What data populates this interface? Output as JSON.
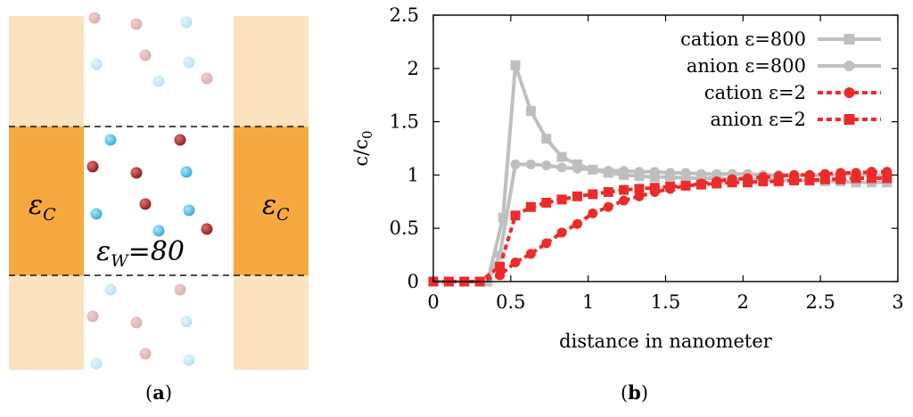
{
  "panel_a": {
    "caption_open": "(",
    "caption_letter": "a",
    "caption_close": ")",
    "left_label_main": "ε",
    "left_label_sub": "C",
    "right_label_main": "ε",
    "right_label_sub": "C",
    "water_label_main": "ε",
    "water_label_sub": "W",
    "water_label_value": "=80",
    "colors": {
      "electrode_light": "#fbe3c0",
      "electrode_dark": "#f7a93f",
      "cation": "#b03030",
      "anion": "#5cc8ec"
    }
  },
  "panel_b": {
    "caption_open": "(",
    "caption_letter": "b",
    "caption_close": ")"
  },
  "chart_data": {
    "type": "line",
    "title": "",
    "xlabel": "distance in nanometer",
    "ylabel_main": "c/c",
    "ylabel_sub": "0",
    "xlim": [
      0,
      3
    ],
    "ylim": [
      0,
      2.5
    ],
    "xticks": [
      "0",
      "0.5",
      "1",
      "1.5",
      "2",
      "2.5",
      "3"
    ],
    "yticks": [
      "0",
      "0.5",
      "1",
      "1.5",
      "2",
      "2.5"
    ],
    "legend_position": "top-right",
    "series": [
      {
        "name": "cation ε=800",
        "color": "#bfbfbf",
        "marker": "square",
        "dash": "solid",
        "x": [
          0,
          0.1,
          0.2,
          0.3,
          0.35,
          0.45,
          0.53,
          0.63,
          0.73,
          0.83,
          0.93,
          1.03,
          1.13,
          1.23,
          1.33,
          1.43,
          1.53,
          1.63,
          1.73,
          1.83,
          1.93,
          2.03,
          2.13,
          2.23,
          2.33,
          2.43,
          2.53,
          2.63,
          2.73,
          2.83,
          2.93
        ],
        "y": [
          0,
          0,
          0,
          0,
          0,
          0.6,
          2.03,
          1.6,
          1.34,
          1.17,
          1.1,
          1.05,
          1.02,
          1.0,
          0.99,
          0.98,
          0.98,
          0.97,
          0.97,
          0.97,
          0.96,
          0.96,
          0.96,
          0.95,
          0.95,
          0.95,
          0.94,
          0.94,
          0.93,
          0.93,
          0.93
        ]
      },
      {
        "name": "anion ε=800",
        "color": "#bfbfbf",
        "marker": "circle",
        "dash": "solid",
        "x": [
          0,
          0.1,
          0.2,
          0.3,
          0.35,
          0.43,
          0.53,
          0.63,
          0.73,
          0.83,
          0.93,
          1.03,
          1.13,
          1.23,
          1.33,
          1.43,
          1.53,
          1.63,
          1.73,
          1.83,
          1.93,
          2.03,
          2.13,
          2.23,
          2.33,
          2.43,
          2.53,
          2.63,
          2.73,
          2.83,
          2.93
        ],
        "y": [
          0,
          0,
          0,
          0,
          0,
          0.25,
          1.1,
          1.1,
          1.09,
          1.07,
          1.06,
          1.05,
          1.04,
          1.04,
          1.03,
          1.03,
          1.02,
          1.02,
          1.01,
          1.01,
          1.01,
          1.01,
          1.0,
          1.0,
          1.0,
          1.0,
          1.0,
          1.0,
          1.0,
          1.0,
          1.0
        ]
      },
      {
        "name": "cation ε=2",
        "color": "#ec2b2b",
        "marker": "circle",
        "dash": "dashed",
        "x": [
          0,
          0.1,
          0.2,
          0.3,
          0.43,
          0.53,
          0.63,
          0.73,
          0.83,
          0.93,
          1.03,
          1.13,
          1.23,
          1.33,
          1.43,
          1.53,
          1.63,
          1.73,
          1.83,
          1.93,
          2.03,
          2.13,
          2.23,
          2.33,
          2.43,
          2.53,
          2.63,
          2.73,
          2.83,
          2.93
        ],
        "y": [
          0,
          0,
          0,
          0,
          0.06,
          0.18,
          0.26,
          0.36,
          0.46,
          0.54,
          0.64,
          0.7,
          0.76,
          0.8,
          0.84,
          0.87,
          0.9,
          0.92,
          0.94,
          0.96,
          0.97,
          0.98,
          0.99,
          1.0,
          1.0,
          1.01,
          1.02,
          1.02,
          1.03,
          1.03
        ]
      },
      {
        "name": "anion ε=2",
        "color": "#ec2b2b",
        "marker": "square",
        "dash": "dashed",
        "x": [
          0,
          0.1,
          0.2,
          0.3,
          0.43,
          0.53,
          0.63,
          0.73,
          0.83,
          0.93,
          1.03,
          1.13,
          1.23,
          1.33,
          1.43,
          1.53,
          1.63,
          1.73,
          1.83,
          1.93,
          2.03,
          2.13,
          2.23,
          2.33,
          2.43,
          2.53,
          2.63,
          2.73,
          2.83,
          2.93
        ],
        "y": [
          0,
          0,
          0,
          0,
          0.14,
          0.62,
          0.7,
          0.74,
          0.77,
          0.8,
          0.82,
          0.84,
          0.86,
          0.87,
          0.88,
          0.89,
          0.9,
          0.91,
          0.92,
          0.93,
          0.93,
          0.94,
          0.94,
          0.95,
          0.95,
          0.96,
          0.96,
          0.97,
          0.97,
          0.97
        ]
      }
    ]
  }
}
